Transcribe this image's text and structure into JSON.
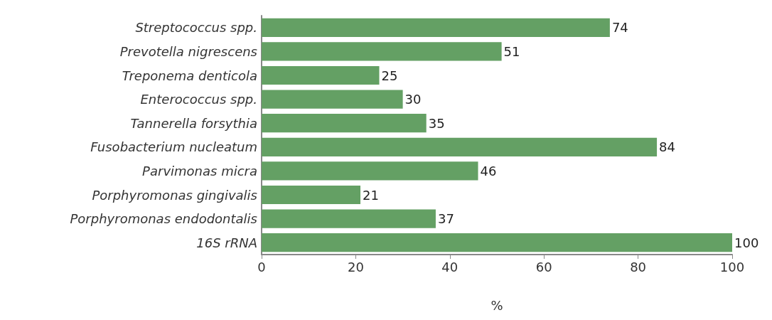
{
  "chart_data": {
    "type": "bar",
    "orientation": "horizontal",
    "categories": [
      "Streptococcus spp.",
      "Prevotella nigrescens",
      "Treponema denticola",
      "Enterococcus spp.",
      "Tannerella forsythia",
      "Fusobacterium nucleatum",
      "Parvimonas micra",
      "Porphyromonas gingivalis",
      "Porphyromonas endodontalis",
      "16S rRNA"
    ],
    "values": [
      74,
      51,
      25,
      30,
      35,
      84,
      46,
      21,
      37,
      100
    ],
    "color": "#64a064",
    "xlim": [
      0,
      100
    ],
    "xticks": [
      0,
      20,
      40,
      60,
      80,
      100
    ],
    "xlabel": "%",
    "data_labels": true,
    "grid": false
  }
}
